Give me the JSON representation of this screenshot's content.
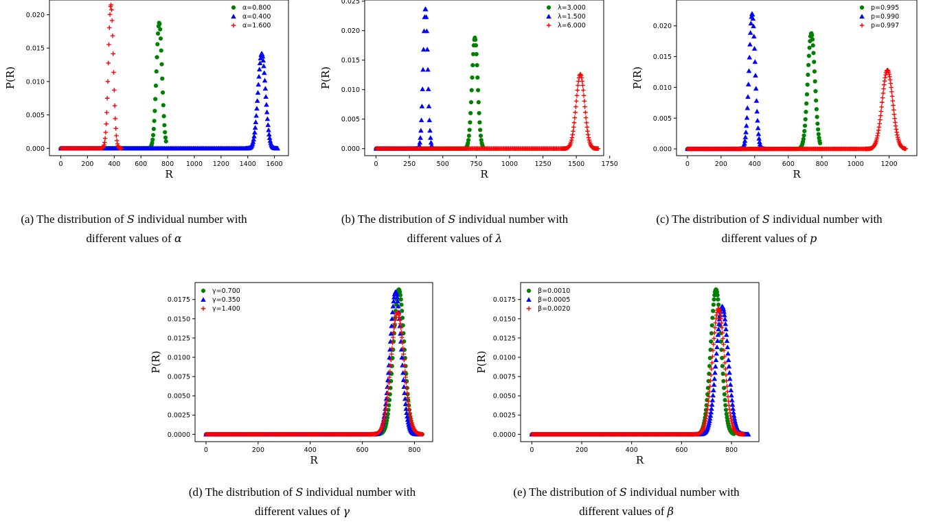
{
  "chart_data": [
    {
      "id": "a",
      "type": "scatter",
      "xlabel": "R",
      "ylabel": "P(R)",
      "xlim": [
        -85,
        1705
      ],
      "ylim": [
        -0.0011,
        0.0222
      ],
      "xticks": [
        0,
        200,
        400,
        600,
        800,
        1000,
        1200,
        1400,
        1600
      ],
      "yticks": [
        0.0,
        0.005,
        0.01,
        0.015,
        0.02
      ],
      "ytick_labels": [
        "0.000",
        "0.005",
        "0.010",
        "0.015",
        "0.020"
      ],
      "legend_position": "top-right",
      "series": [
        {
          "name": "α=0.800",
          "color": "#008000",
          "marker": "circle",
          "mean": 737,
          "peak": 0.0188,
          "sd": 21.2,
          "xmax": 790
        },
        {
          "name": "α=0.400",
          "color": "#0000ff",
          "marker": "triangle",
          "mean": 1505,
          "peak": 0.0142,
          "sd": 28.1,
          "xmax": 1625
        },
        {
          "name": "α=1.600",
          "color": "#ff0000",
          "marker": "plus",
          "mean": 375,
          "peak": 0.0215,
          "sd": 18.6,
          "xmax": 460
        }
      ],
      "caption": {
        "prefix": "(a) The distribution of",
        "var": "S",
        "mid": "individual number with",
        "line2": "different values of",
        "sym": "α"
      }
    },
    {
      "id": "b",
      "type": "scatter",
      "xlabel": "R",
      "ylabel": "P(R)",
      "xlim": [
        -85,
        1705
      ],
      "ylim": [
        -0.0012,
        0.0252
      ],
      "xticks": [
        0,
        250,
        500,
        750,
        1000,
        1250,
        1500,
        1750
      ],
      "yticks": [
        0.0,
        0.005,
        0.01,
        0.015,
        0.02,
        0.025
      ],
      "ytick_labels": [
        "0.000",
        "0.005",
        "0.010",
        "0.015",
        "0.020",
        "0.025"
      ],
      "legend_position": "top-right",
      "series": [
        {
          "name": "λ=3.000",
          "color": "#008000",
          "marker": "circle",
          "mean": 740,
          "peak": 0.0188,
          "sd": 21.2,
          "xmax": 800
        },
        {
          "name": "λ=1.500",
          "color": "#0000ff",
          "marker": "triangle",
          "mean": 370,
          "peak": 0.0238,
          "sd": 16.8,
          "xmax": 420
        },
        {
          "name": "λ=6.000",
          "color": "#ff0000",
          "marker": "plus",
          "mean": 1530,
          "peak": 0.0126,
          "sd": 31.7,
          "xmax": 1665
        }
      ],
      "caption": {
        "prefix": "(b) The distribution of",
        "var": "S",
        "mid": "individual number with",
        "line2": "different values of",
        "sym": "λ"
      }
    },
    {
      "id": "c",
      "type": "scatter",
      "xlabel": "R",
      "ylabel": "P(R)",
      "xlim": [
        -65,
        1365
      ],
      "ylim": [
        -0.0011,
        0.0242
      ],
      "xticks": [
        0,
        200,
        400,
        600,
        800,
        1000,
        1200
      ],
      "yticks": [
        0.0,
        0.005,
        0.01,
        0.015,
        0.02
      ],
      "ytick_labels": [
        "0.000",
        "0.005",
        "0.010",
        "0.015",
        "0.020"
      ],
      "legend_position": "top-right",
      "series": [
        {
          "name": "p=0.995",
          "color": "#008000",
          "marker": "circle",
          "mean": 737,
          "peak": 0.0188,
          "sd": 21.2,
          "xmax": 790
        },
        {
          "name": "p=0.990",
          "color": "#0000ff",
          "marker": "triangle",
          "mean": 385,
          "peak": 0.022,
          "sd": 18.1,
          "xmax": 460
        },
        {
          "name": "p=0.997",
          "color": "#ff0000",
          "marker": "plus",
          "mean": 1190,
          "peak": 0.0128,
          "sd": 31.2,
          "xmax": 1300
        }
      ],
      "caption": {
        "prefix": "(c) The distribution of",
        "var": "S",
        "mid": "individual number with",
        "line2": "different values of",
        "sym": "p"
      }
    },
    {
      "id": "d",
      "type": "scatter",
      "xlabel": "R",
      "ylabel": "P(R)",
      "xlim": [
        -42,
        870
      ],
      "ylim": [
        -0.00095,
        0.0197
      ],
      "xticks": [
        0,
        200,
        400,
        600,
        800
      ],
      "yticks": [
        0.0,
        0.0025,
        0.005,
        0.0075,
        0.01,
        0.0125,
        0.015,
        0.0175
      ],
      "ytick_labels": [
        "0.0000",
        "0.0025",
        "0.0050",
        "0.0075",
        "0.0100",
        "0.0125",
        "0.0150",
        "0.0175"
      ],
      "legend_position": "top-left",
      "series": [
        {
          "name": "γ=0.700",
          "color": "#008000",
          "marker": "circle",
          "mean": 740,
          "peak": 0.0188,
          "sd": 21.2,
          "xmax": 830
        },
        {
          "name": "γ=0.350",
          "color": "#0000ff",
          "marker": "triangle",
          "mean": 728,
          "peak": 0.0185,
          "sd": 21.6,
          "xmax": 825
        },
        {
          "name": "γ=1.400",
          "color": "#ff0000",
          "marker": "plus",
          "mean": 735,
          "peak": 0.0158,
          "sd": 25.2,
          "xmax": 830
        }
      ],
      "caption": {
        "prefix": "(d) The distribution of",
        "var": "S",
        "mid": "individual number with",
        "line2": "different values of",
        "sym": "γ"
      }
    },
    {
      "id": "e",
      "type": "scatter",
      "xlabel": "R",
      "ylabel": "P(R)",
      "xlim": [
        -45,
        910
      ],
      "ylim": [
        -0.00095,
        0.0197
      ],
      "xticks": [
        0,
        200,
        400,
        600,
        800
      ],
      "yticks": [
        0.0,
        0.0025,
        0.005,
        0.0075,
        0.01,
        0.0125,
        0.015,
        0.0175
      ],
      "ytick_labels": [
        "0.0000",
        "0.0025",
        "0.0050",
        "0.0075",
        "0.0100",
        "0.0125",
        "0.0150",
        "0.0175"
      ],
      "legend_position": "top-left",
      "series": [
        {
          "name": "β=0.0010",
          "color": "#008000",
          "marker": "circle",
          "mean": 738,
          "peak": 0.0188,
          "sd": 21.2,
          "xmax": 810
        },
        {
          "name": "β=0.0005",
          "color": "#0000ff",
          "marker": "triangle",
          "mean": 763,
          "peak": 0.0166,
          "sd": 24.0,
          "xmax": 870
        },
        {
          "name": "β=0.0020",
          "color": "#ff0000",
          "marker": "plus",
          "mean": 748,
          "peak": 0.0163,
          "sd": 24.5,
          "xmax": 850
        }
      ],
      "caption": {
        "prefix": "(e) The distribution of",
        "var": "S",
        "mid": "individual number with",
        "line2": "different values of",
        "sym": "β"
      }
    }
  ]
}
